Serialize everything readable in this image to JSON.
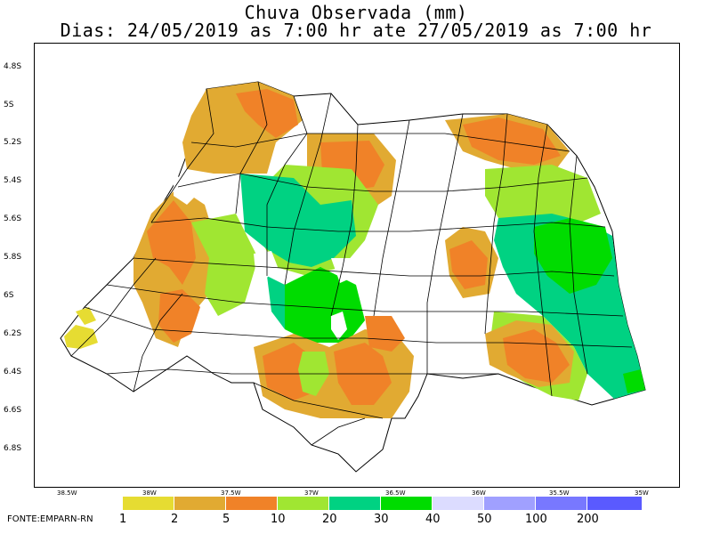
{
  "header": {
    "title": "Chuva Observada (mm)",
    "subtitle": "Dias: 24/05/2019 as 7:00 hr ate 27/05/2019 as 7:00 hr"
  },
  "axes": {
    "lat_labels": [
      "4.8S",
      "5S",
      "5.2S",
      "5.4S",
      "5.6S",
      "5.8S",
      "6S",
      "6.2S",
      "6.4S",
      "6.6S",
      "6.8S"
    ],
    "lon_labels": [
      "38.5W",
      "38W",
      "37.5W",
      "37W",
      "36.5W",
      "36W",
      "35.5W",
      "35W"
    ]
  },
  "legend": {
    "values": [
      "1",
      "2",
      "5",
      "10",
      "20",
      "30",
      "40",
      "50",
      "100",
      "200"
    ],
    "colors": [
      "#e6dc32",
      "#e1aa32",
      "#f08228",
      "#a0e632",
      "#00d282",
      "#00dc00",
      "#dcdcff",
      "#a0a0ff",
      "#7878ff",
      "#5a5aff"
    ]
  },
  "source": "FONTE:EMPARN-RN",
  "colors": {
    "lt1": "#e6dc32",
    "c2": "#e1aa32",
    "c5": "#f08228",
    "c10": "#a0e632",
    "c20": "#00d282",
    "c30": "#00dc00"
  }
}
